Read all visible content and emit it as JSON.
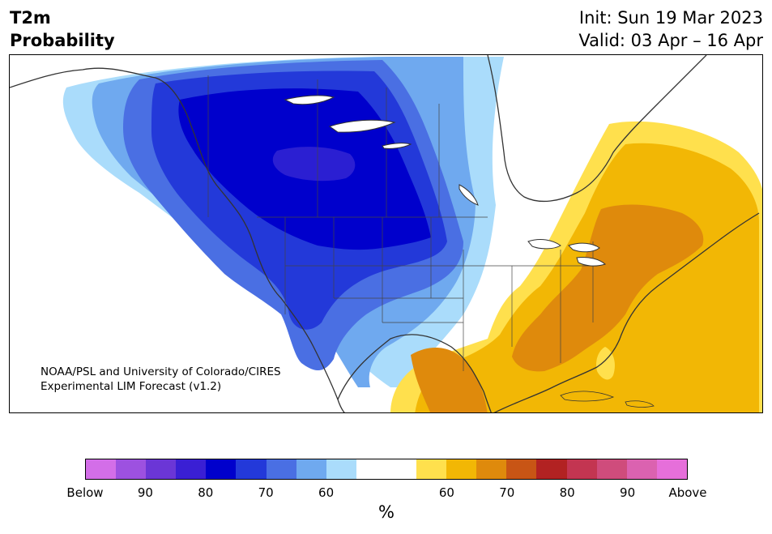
{
  "header": {
    "title_line1": "T2m",
    "title_line2": "Probability",
    "init_line": "Init: Sun 19 Mar 2023",
    "valid_line": "Valid: 03 Apr – 16 Apr"
  },
  "credit": {
    "line1": "NOAA/PSL and University of Colorado/CIRES",
    "line2": "Experimental LIM Forecast (v1.2)"
  },
  "colorbar": {
    "unit": "%",
    "labels": [
      "Below",
      "90",
      "80",
      "70",
      "60",
      "60",
      "70",
      "80",
      "90",
      "Above"
    ],
    "colors": [
      "#d36ee8",
      "#9d51e0",
      "#6b36d6",
      "#3a1fd4",
      "#0000cc",
      "#2339d9",
      "#4a6fe3",
      "#6fa9ef",
      "#aadcfb",
      "#ffffff",
      "#ffffff",
      "#ffe04d",
      "#f2b705",
      "#df8a0c",
      "#c85515",
      "#b22222",
      "#c33551",
      "#cf4c7c",
      "#db62b0",
      "#e66fda"
    ]
  },
  "map": {
    "region": "North America",
    "below_normal_colors": {
      "strong": "#0000cc",
      "core": "#2b1fd2",
      "mid": "#2339d9",
      "light": "#4a6fe3",
      "pale": "#6fa9ef",
      "faint": "#aadcfb"
    },
    "above_normal_colors": {
      "faint": "#ffe04d",
      "light": "#f2b705",
      "mid": "#df8a0c"
    },
    "land_outline_color": "#333333"
  }
}
